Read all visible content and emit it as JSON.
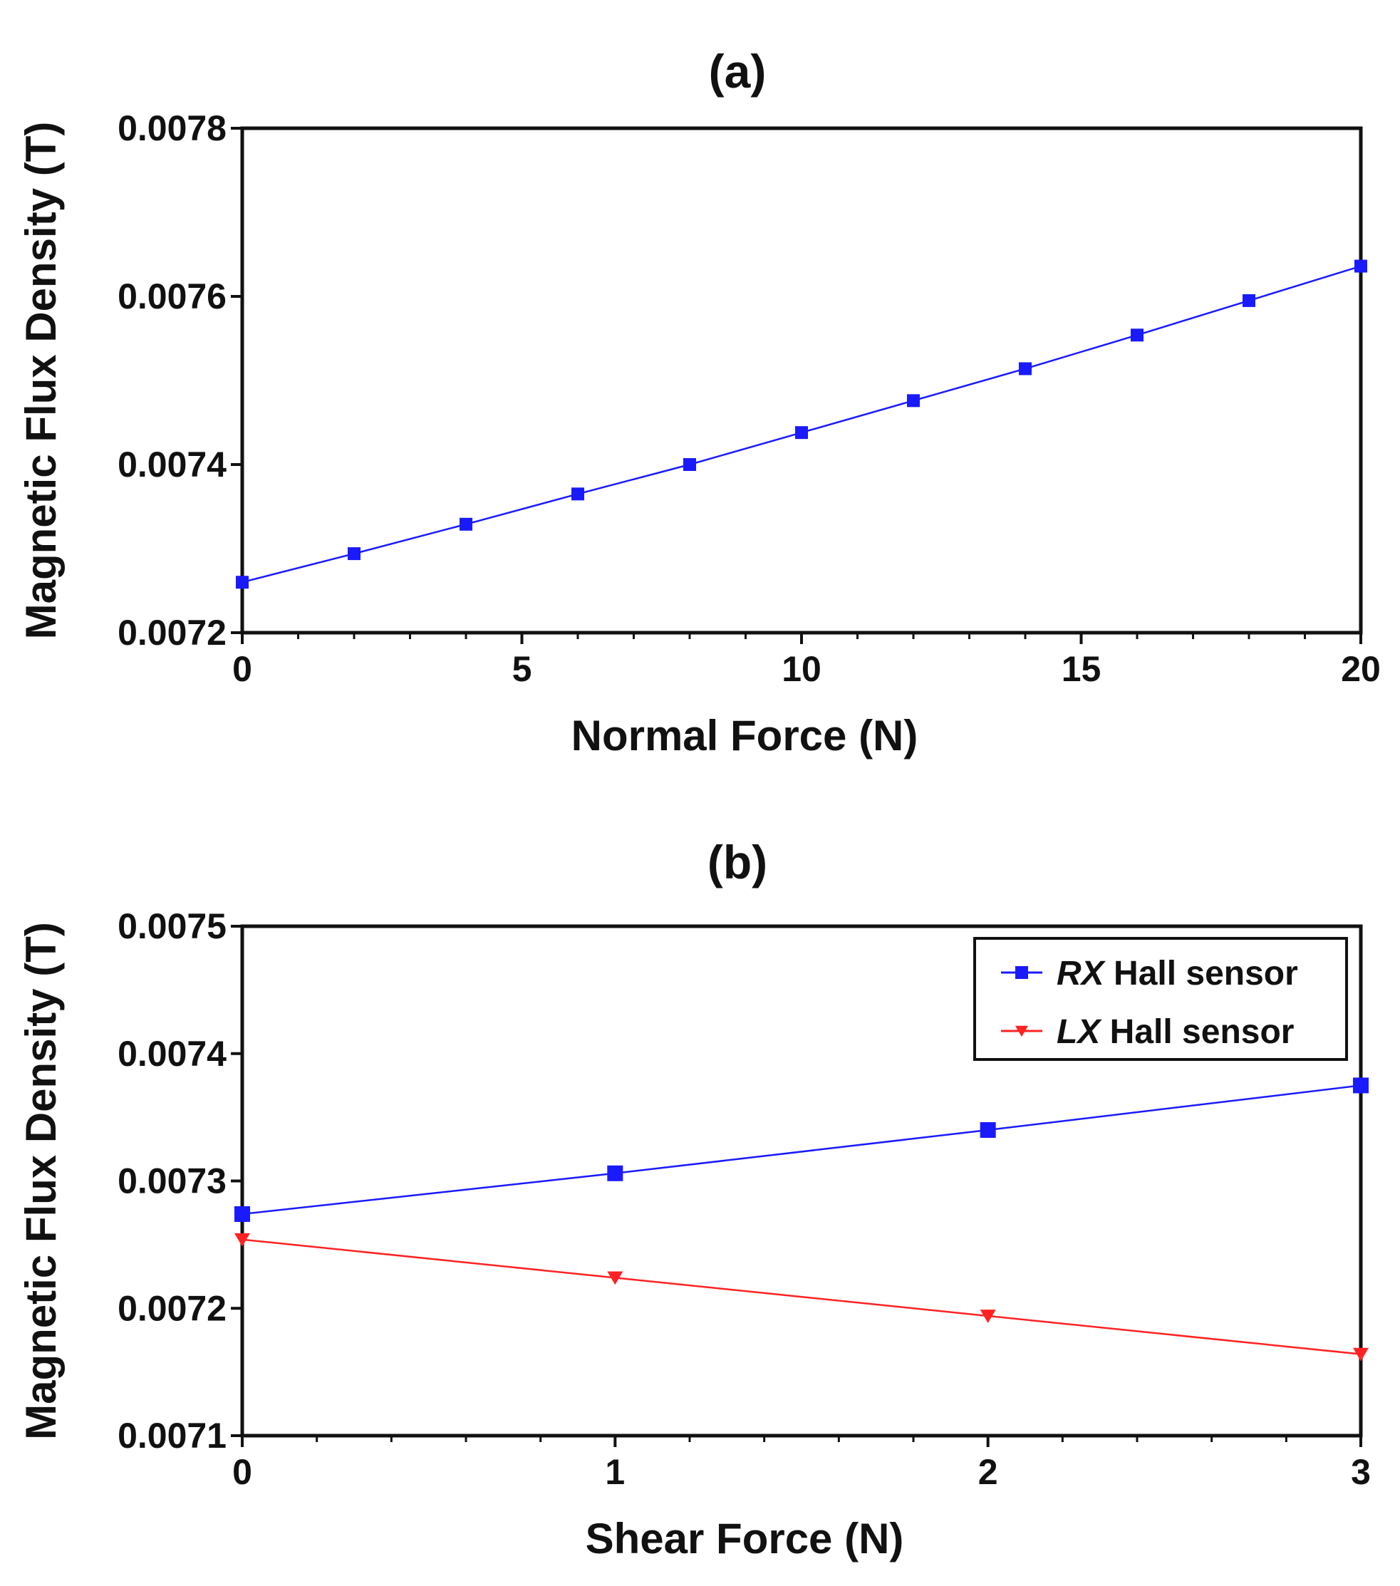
{
  "chart_data": [
    {
      "type": "line",
      "title": "(a)",
      "xlabel": "Normal Force (N)",
      "ylabel": "Magnetic Flux Density (T)",
      "xlim": [
        0,
        20
      ],
      "ylim": [
        0.0072,
        0.0078
      ],
      "xticks": [
        0,
        5,
        10,
        15,
        20
      ],
      "yticks": [
        0.0072,
        0.0074,
        0.0076,
        0.0078
      ],
      "ytick_labels": [
        "0.0072",
        "0.0074",
        "0.0076",
        "0.0078"
      ],
      "grid": false,
      "x": [
        0,
        2,
        4,
        6,
        8,
        10,
        12,
        14,
        16,
        18,
        20
      ],
      "series": [
        {
          "name": "",
          "color": "#1a1aff",
          "marker": "square",
          "values": [
            0.00726,
            0.007294,
            0.007329,
            0.007365,
            0.0074,
            0.007438,
            0.007476,
            0.007514,
            0.007554,
            0.007595,
            0.007636
          ]
        }
      ]
    },
    {
      "type": "line",
      "title": "(b)",
      "xlabel": "Shear Force (N)",
      "ylabel": "Magnetic Flux Density (T)",
      "xlim": [
        0,
        3
      ],
      "ylim": [
        0.0071,
        0.0075
      ],
      "xticks": [
        0,
        1,
        2,
        3
      ],
      "yticks": [
        0.0071,
        0.0072,
        0.0073,
        0.0074,
        0.0075
      ],
      "ytick_labels": [
        "0.0071",
        "0.0072",
        "0.0073",
        "0.0074",
        "0.0075"
      ],
      "grid": false,
      "legend_position": "top-right",
      "x": [
        0,
        1,
        2,
        3
      ],
      "series": [
        {
          "name_italic": "RX",
          "name_rest": " Hall sensor",
          "color": "#1a1aff",
          "marker": "square",
          "values": [
            0.007274,
            0.007306,
            0.00734,
            0.007375
          ]
        },
        {
          "name_italic": "LX",
          "name_rest": " Hall sensor",
          "color": "#ff2222",
          "marker": "triangle-down",
          "values": [
            0.007254,
            0.007224,
            0.007194,
            0.007164
          ]
        }
      ]
    }
  ]
}
